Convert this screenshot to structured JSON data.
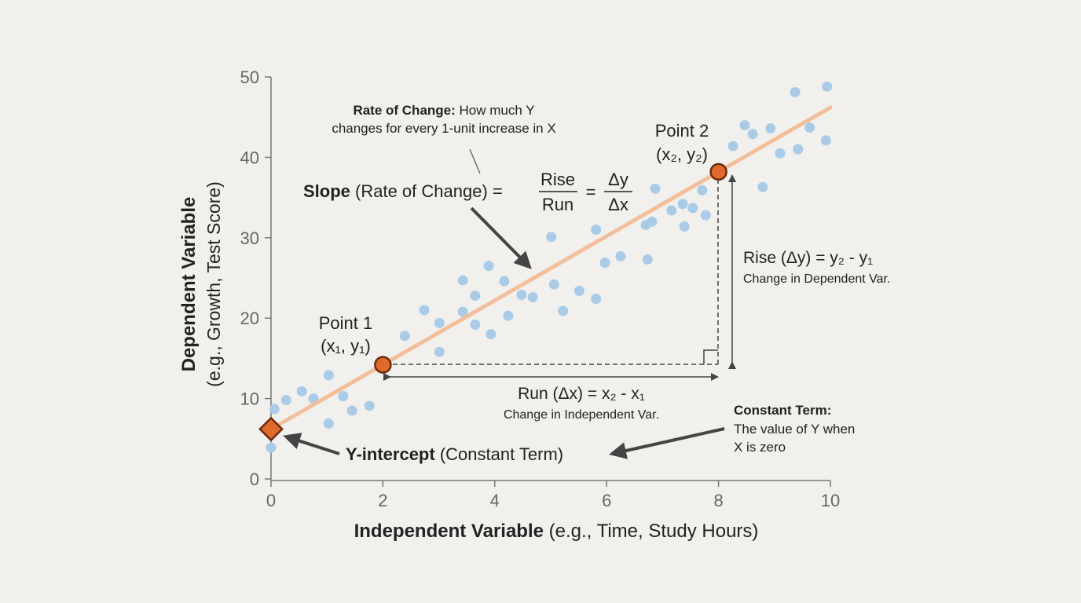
{
  "chart_data": {
    "type": "scatter",
    "xlabel_bold": "Independent Variable",
    "xlabel_rest": " (e.g., Time, Study Hours)",
    "ylabel_bold": "Dependent Variable",
    "ylabel_rest": "(e.g., Growth, Test Score)",
    "xlim": [
      0,
      10
    ],
    "ylim": [
      0,
      50
    ],
    "xticks": [
      "0",
      "2",
      "4",
      "6",
      "8",
      "10"
    ],
    "yticks": [
      "0",
      "10",
      "20",
      "30",
      "40",
      "50"
    ],
    "grid": false,
    "colors": {
      "points": "#a9cbe8",
      "line": "#f2bf9a",
      "marker": "#e06a2c",
      "marker_edge": "#6b2a10",
      "annotation": "#444444"
    },
    "points": [
      [
        0,
        3.9
      ],
      [
        0.06,
        8.7
      ],
      [
        0.27,
        9.8
      ],
      [
        0.55,
        10.9
      ],
      [
        0.76,
        10.0
      ],
      [
        1.03,
        12.9
      ],
      [
        1.03,
        6.9
      ],
      [
        1.29,
        10.3
      ],
      [
        1.45,
        8.5
      ],
      [
        1.76,
        9.1
      ],
      [
        2.39,
        17.8
      ],
      [
        2.74,
        21.0
      ],
      [
        3.01,
        19.4
      ],
      [
        3.01,
        15.8
      ],
      [
        3.43,
        24.7
      ],
      [
        3.43,
        20.8
      ],
      [
        3.65,
        22.8
      ],
      [
        3.65,
        19.2
      ],
      [
        3.89,
        26.5
      ],
      [
        3.93,
        18.0
      ],
      [
        4.17,
        24.6
      ],
      [
        4.24,
        20.3
      ],
      [
        4.48,
        22.9
      ],
      [
        4.68,
        22.6
      ],
      [
        5.01,
        30.1
      ],
      [
        5.06,
        24.2
      ],
      [
        5.22,
        20.9
      ],
      [
        5.51,
        23.4
      ],
      [
        5.81,
        31.0
      ],
      [
        5.81,
        22.4
      ],
      [
        5.97,
        26.9
      ],
      [
        6.25,
        27.7
      ],
      [
        6.7,
        31.6
      ],
      [
        6.73,
        27.3
      ],
      [
        6.81,
        32.0
      ],
      [
        6.87,
        36.1
      ],
      [
        7.16,
        33.4
      ],
      [
        7.36,
        34.2
      ],
      [
        7.39,
        31.4
      ],
      [
        7.54,
        33.7
      ],
      [
        7.71,
        35.9
      ],
      [
        7.77,
        32.8
      ],
      [
        8.26,
        41.4
      ],
      [
        8.47,
        44.0
      ],
      [
        8.61,
        42.9
      ],
      [
        8.79,
        36.3
      ],
      [
        8.93,
        43.6
      ],
      [
        9.1,
        40.5
      ],
      [
        9.42,
        41.0
      ],
      [
        9.37,
        48.1
      ],
      [
        9.63,
        43.7
      ],
      [
        9.92,
        42.1
      ],
      [
        9.94,
        48.8
      ]
    ],
    "regression_line": {
      "intercept": 6.2,
      "slope": 4.0,
      "x_range": [
        0,
        10
      ]
    },
    "y_intercept_point": [
      0,
      6.2
    ],
    "point1": [
      2,
      14.2
    ],
    "point2": [
      8,
      38.2
    ]
  },
  "annotations": {
    "rate_of_change": {
      "bold": "Rate of Change:",
      "line1": " How much Y",
      "line2": "changes for every 1-unit increase in X"
    },
    "slope": {
      "bold": "Slope",
      "rest": " (Rate of Change) =",
      "rise": "Rise",
      "run": "Run",
      "eq": "=",
      "dy": "Δy",
      "dx": "Δx"
    },
    "point1": {
      "label": "Point 1",
      "coord": "(x₁, y₁)"
    },
    "point2": {
      "label": "Point 2",
      "coord": "(x₂, y₂)"
    },
    "rise": {
      "main": "Rise (Δy) = y₂ - y₁",
      "sub": "Change in Dependent Var."
    },
    "run": {
      "main": "Run (Δx) = x₂ - x₁",
      "sub": "Change in Independent Var."
    },
    "y_intercept": {
      "bold": "Y-intercept",
      "rest": " (Constant Term)"
    },
    "constant_term": {
      "title": "Constant Term:",
      "line1": "The value of Y when",
      "line2": "X is zero"
    }
  }
}
